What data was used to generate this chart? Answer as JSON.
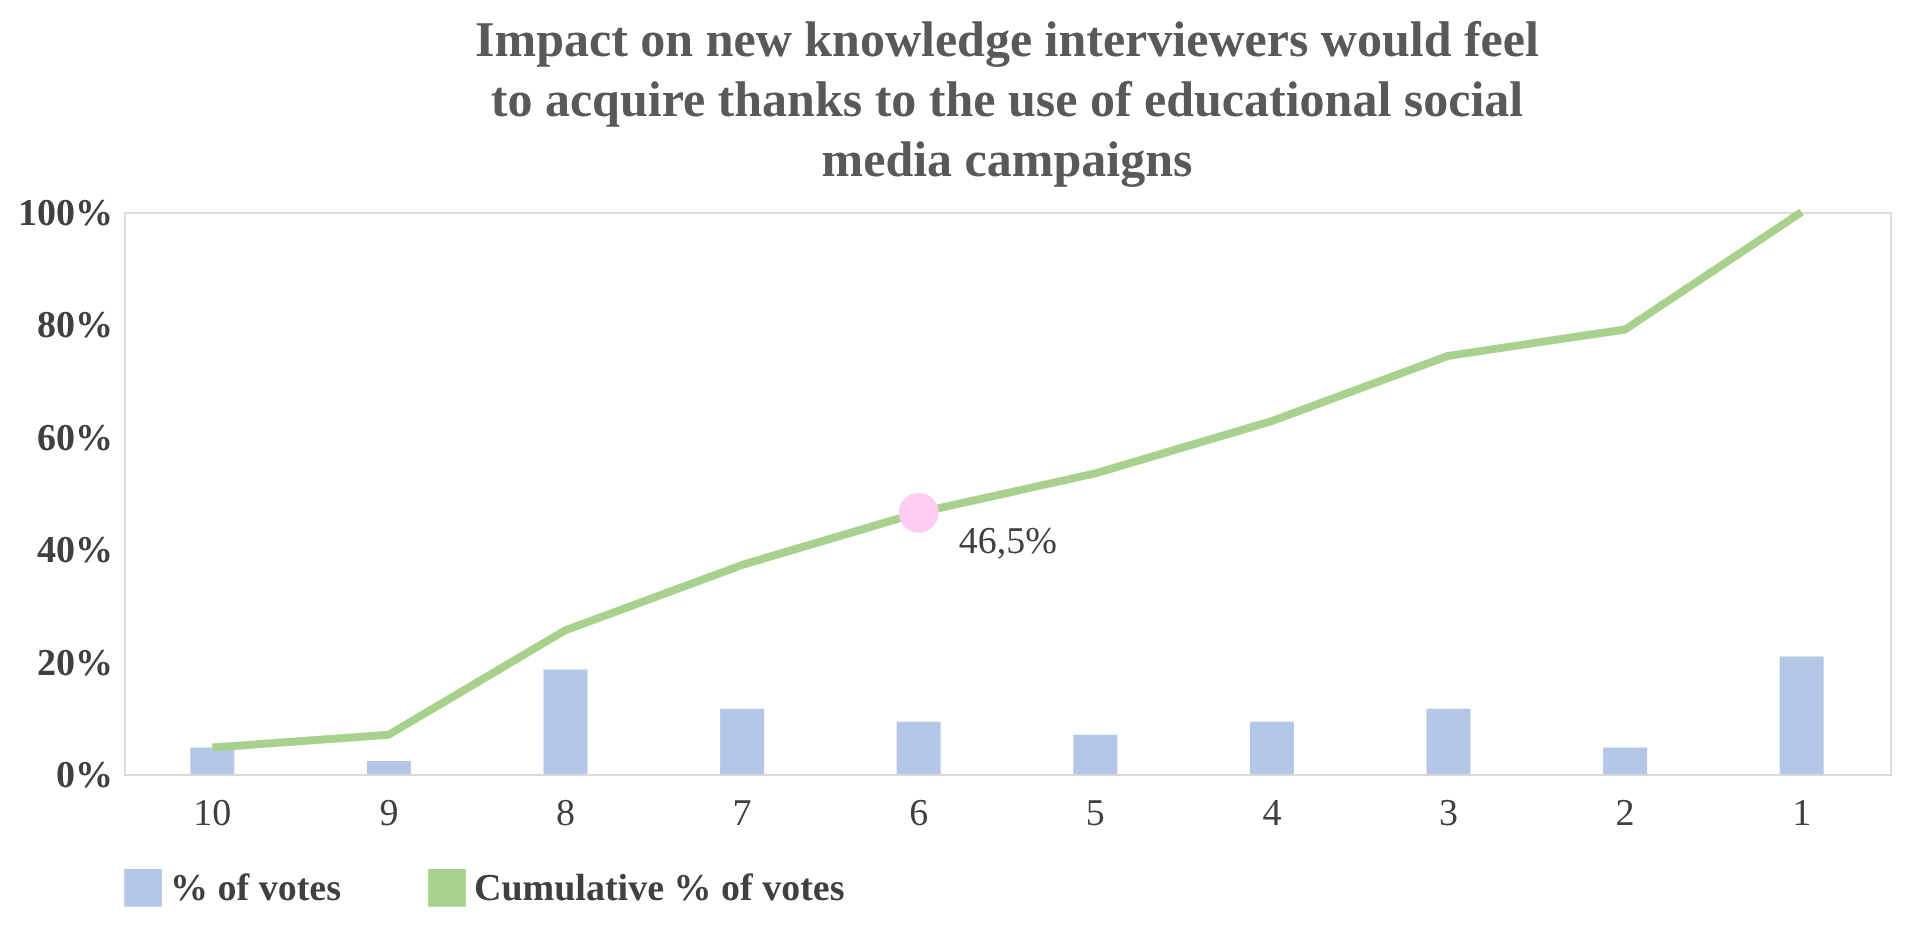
{
  "chart_data": {
    "type": "bar",
    "title": "Impact on new knowledge  interviewers would feel to acquire thanks to the use of educational social media campaigns",
    "categories": [
      "10",
      "9",
      "8",
      "7",
      "6",
      "5",
      "4",
      "3",
      "2",
      "1"
    ],
    "series": [
      {
        "name": "% of votes",
        "color": "#b4c7e7",
        "values": [
          4.7,
          2.3,
          18.6,
          11.6,
          9.3,
          7.0,
          9.3,
          11.6,
          4.7,
          20.9
        ]
      },
      {
        "name": "Cumulative % of votes",
        "type": "line",
        "color": "#a9d18e",
        "values": [
          4.7,
          7.0,
          25.6,
          37.2,
          46.5,
          53.5,
          62.8,
          74.4,
          79.1,
          100
        ]
      }
    ],
    "ylim": [
      0,
      100
    ],
    "yticks": [
      {
        "value": 0,
        "label": "0%"
      },
      {
        "value": 20,
        "label": "20%"
      },
      {
        "value": 40,
        "label": "40%"
      },
      {
        "value": 60,
        "label": "60%"
      },
      {
        "value": 80,
        "label": "80%"
      },
      {
        "value": 100,
        "label": "100%"
      }
    ],
    "annotations": [
      {
        "text": "46,5%",
        "x": "6",
        "y": 46.5
      }
    ],
    "grid": false,
    "legend": "bottom",
    "marker": "none"
  }
}
